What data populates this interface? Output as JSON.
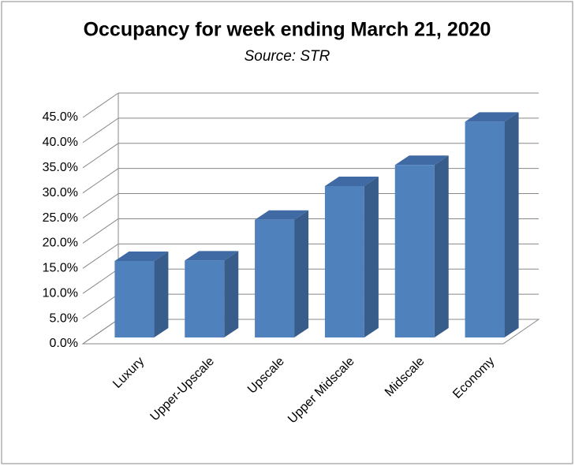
{
  "chart_data": {
    "type": "bar3d",
    "title": "Occupancy for week ending March 21, 2020",
    "subtitle": "Source: STR",
    "categories": [
      "Luxury",
      "Upper-Upscale",
      "Upscale",
      "Upper Midscale",
      "Midscale",
      "Economy"
    ],
    "values": [
      15.2,
      15.3,
      23.4,
      30.1,
      34.3,
      42.9
    ],
    "color": "#4f81bd",
    "ylim": [
      0,
      45
    ],
    "yticks": [
      {
        "value": 0,
        "label": "0.0%"
      },
      {
        "value": 5,
        "label": "5.0%"
      },
      {
        "value": 10,
        "label": "10.0%"
      },
      {
        "value": 15,
        "label": "15.0%"
      },
      {
        "value": 20,
        "label": "20.0%"
      },
      {
        "value": 25,
        "label": "25.0%"
      },
      {
        "value": 30,
        "label": "30.0%"
      },
      {
        "value": 35,
        "label": "35.0%"
      },
      {
        "value": 40,
        "label": "40.0%"
      },
      {
        "value": 45,
        "label": "45.0%"
      }
    ],
    "grid": true
  }
}
